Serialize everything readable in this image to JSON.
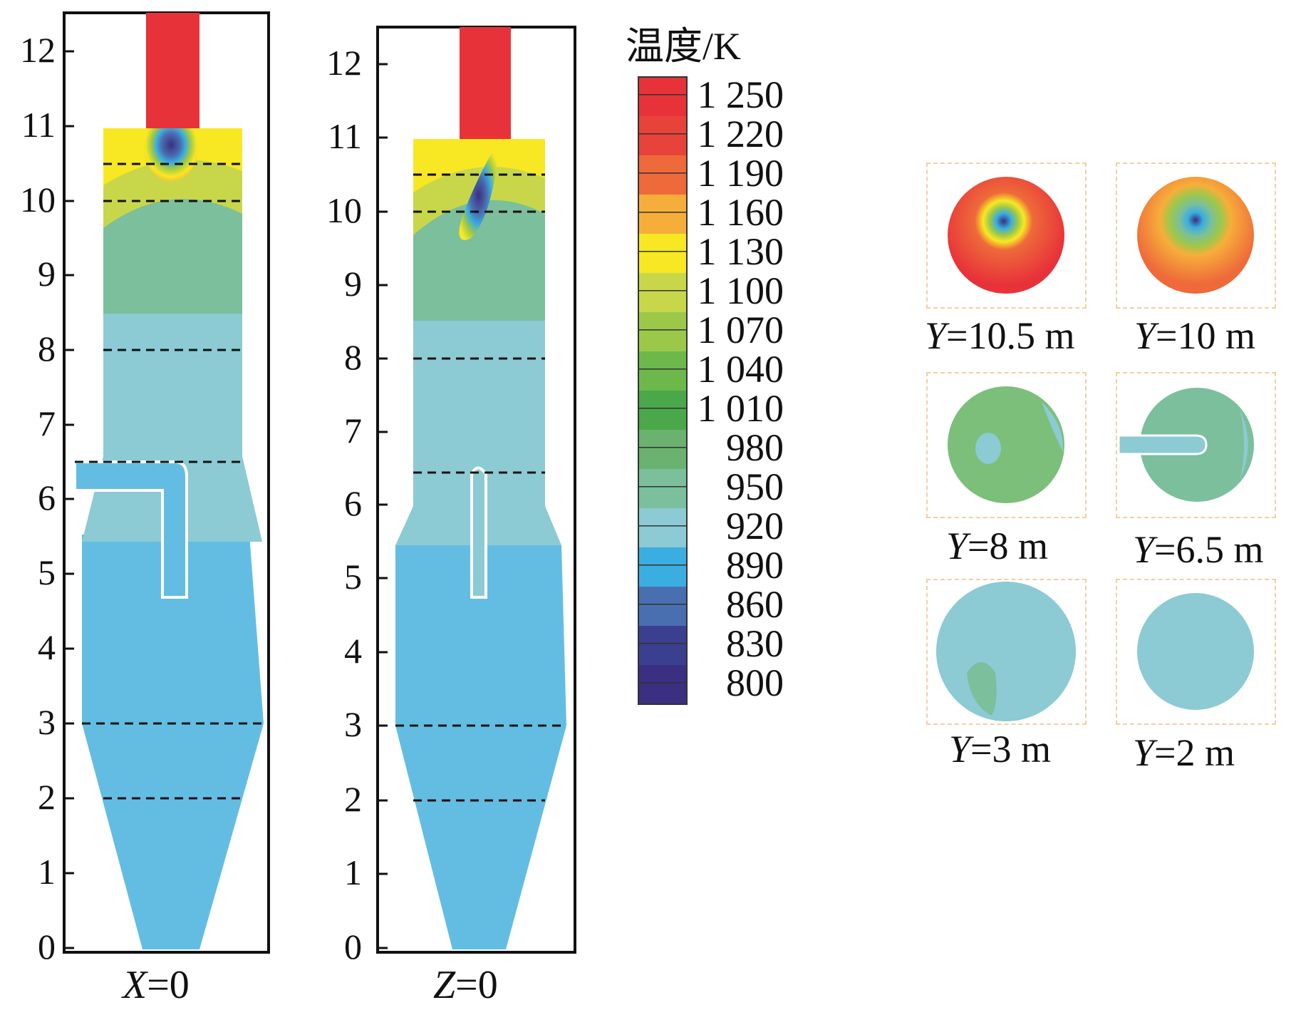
{
  "legend": {
    "title": "温度/K",
    "levels": [
      "1 250",
      "1 220",
      "1 190",
      "1 160",
      "1 130",
      "1 100",
      "1 070",
      "1 040",
      "1 010",
      "980",
      "950",
      "920",
      "890",
      "860",
      "830",
      "800"
    ],
    "colors": [
      "#e8323a",
      "#e8433a",
      "#ee6a3a",
      "#f6ae3a",
      "#f8e823",
      "#c8d74a",
      "#9cc84a",
      "#6db84a",
      "#4aa84a",
      "#6bb16f",
      "#7bbf9c",
      "#8ccad4",
      "#3aaee0",
      "#4a6fb0",
      "#3a3f8f",
      "#3a2f80"
    ]
  },
  "panels": [
    {
      "caption_var": "X",
      "caption_val": "=0",
      "y_ticks": [
        "0",
        "1",
        "2",
        "3",
        "4",
        "5",
        "6",
        "7",
        "8",
        "9",
        "10",
        "11",
        "12"
      ]
    },
    {
      "caption_var": "Z",
      "caption_val": "=0",
      "y_ticks": [
        "0",
        "1",
        "2",
        "3",
        "4",
        "5",
        "6",
        "7",
        "8",
        "9",
        "10",
        "11",
        "12"
      ]
    }
  ],
  "slices": [
    {
      "var": "Y",
      "val": "=10.5 m"
    },
    {
      "var": "Y",
      "val": "=10 m"
    },
    {
      "var": "Y",
      "val": "=8 m"
    },
    {
      "var": "Y",
      "val": "=6.5 m"
    },
    {
      "var": "Y",
      "val": "=3 m"
    },
    {
      "var": "Y",
      "val": "=2 m"
    }
  ]
}
